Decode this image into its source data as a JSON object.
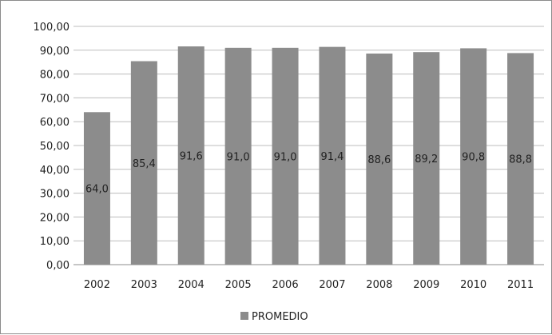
{
  "chart_data": {
    "type": "bar",
    "categories": [
      "2002",
      "2003",
      "2004",
      "2005",
      "2006",
      "2007",
      "2008",
      "2009",
      "2010",
      "2011"
    ],
    "series": [
      {
        "name": "PROMEDIO",
        "values": [
          64.0,
          85.4,
          91.6,
          91.0,
          91.0,
          91.4,
          88.6,
          89.2,
          90.8,
          88.8
        ],
        "data_labels": [
          "64,0",
          "85,4",
          "91,6",
          "91,0",
          "91,0",
          "91,4",
          "88,6",
          "89,2",
          "90,8",
          "88,8"
        ],
        "color": "#8c8c8c"
      }
    ],
    "y_ticks": [
      "0,00",
      "10,00",
      "20,00",
      "30,00",
      "40,00",
      "50,00",
      "60,00",
      "70,00",
      "80,00",
      "90,00",
      "100,00"
    ],
    "ylim": [
      0,
      100
    ],
    "grid": true,
    "legend_position": "bottom"
  }
}
